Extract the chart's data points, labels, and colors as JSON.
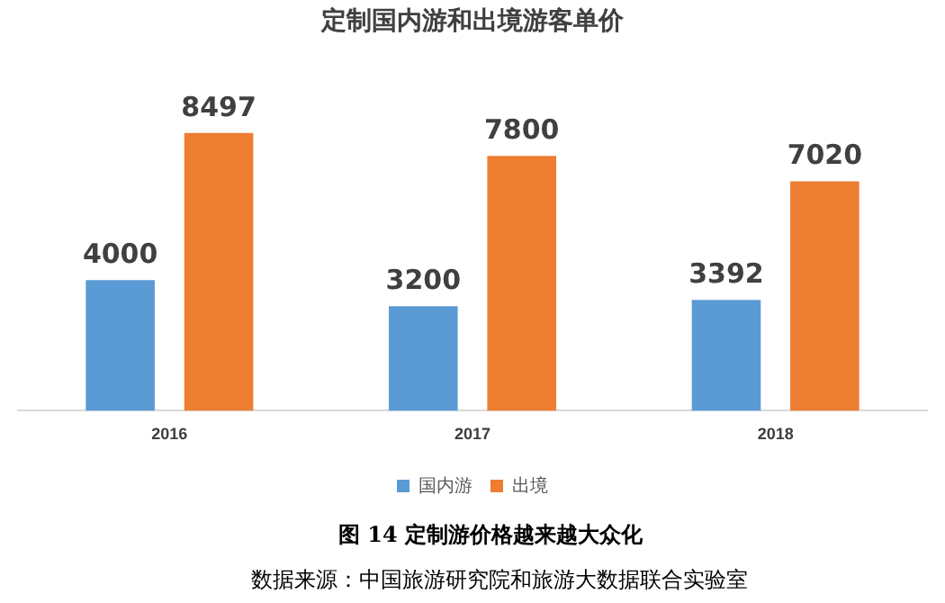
{
  "chart_data": {
    "type": "bar",
    "title": "定制国内游和出境游客单价",
    "categories": [
      "2016",
      "2017",
      "2018"
    ],
    "series": [
      {
        "name": "国内游",
        "color": "#5b9bd5",
        "values": [
          4000,
          3200,
          3392
        ]
      },
      {
        "name": "出境",
        "color": "#ed7d31",
        "values": [
          8497,
          7800,
          7020
        ]
      }
    ],
    "data_labels": true,
    "legend": "bottom",
    "grid": false,
    "annotations": [
      "图 14  定制游价格越来越大众化",
      "数据来源：中国旅游研究院和旅游大数据联合实验室"
    ]
  }
}
